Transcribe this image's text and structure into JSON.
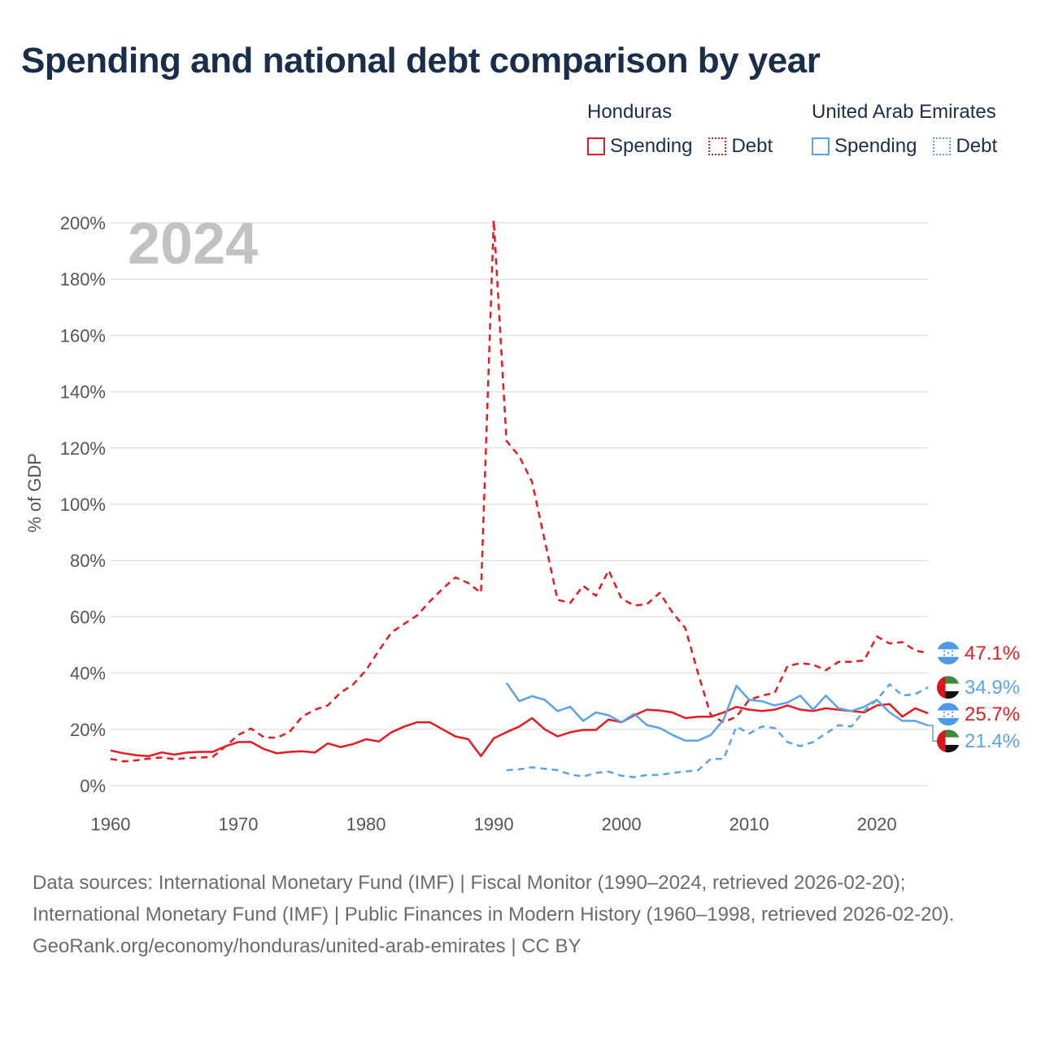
{
  "title": "Spending and national debt comparison by year",
  "legend": {
    "honduras": {
      "country": "Honduras",
      "spending": "Spending",
      "debt": "Debt",
      "color": "#e8191f"
    },
    "uae": {
      "country": "United Arab Emirates",
      "spending": "Spending",
      "debt": "Debt",
      "color": "#5aa3e8"
    }
  },
  "chart_data": {
    "type": "line",
    "year_watermark": "2024",
    "ylabel": "% of GDP",
    "xlabel": "",
    "xlim": [
      1960,
      2024
    ],
    "ylim": [
      0,
      200
    ],
    "x_ticks": [
      "1960",
      "1970",
      "1980",
      "1990",
      "2000",
      "2010",
      "2020"
    ],
    "y_ticks": [
      "0%",
      "20%",
      "40%",
      "60%",
      "80%",
      "100%",
      "120%",
      "140%",
      "160%",
      "180%",
      "200%"
    ],
    "series": [
      {
        "name": "Honduras Debt",
        "country": "Honduras",
        "metric": "Debt",
        "style": "dashed",
        "color": "#e8191f",
        "x": [
          1960,
          1961,
          1962,
          1963,
          1964,
          1965,
          1966,
          1967,
          1968,
          1969,
          1970,
          1971,
          1972,
          1973,
          1974,
          1975,
          1976,
          1977,
          1978,
          1979,
          1980,
          1981,
          1982,
          1983,
          1984,
          1985,
          1986,
          1987,
          1988,
          1989,
          1990,
          1991,
          1992,
          1993,
          1994,
          1995,
          1996,
          1997,
          1998,
          1999,
          2000,
          2001,
          2002,
          2003,
          2004,
          2005,
          2006,
          2007,
          2008,
          2009,
          2010,
          2011,
          2012,
          2013,
          2014,
          2015,
          2016,
          2017,
          2018,
          2019,
          2020,
          2021,
          2022,
          2023,
          2024
        ],
        "values": [
          9.5,
          8.6,
          9.0,
          9.6,
          10.0,
          9.4,
          9.8,
          10.0,
          10.2,
          14.0,
          18.0,
          20.3,
          17.2,
          17.0,
          19.0,
          24.5,
          27.0,
          28.5,
          33.0,
          36.0,
          41.0,
          48.0,
          54.5,
          57.5,
          60.5,
          65.5,
          70.0,
          74.0,
          72.0,
          68.5,
          201.0,
          122.5,
          117.0,
          108.0,
          87.0,
          66.0,
          65.0,
          71.0,
          67.5,
          76.5,
          66.5,
          64.0,
          64.5,
          68.5,
          61.5,
          56.0,
          40.0,
          25.0,
          22.5,
          24.5,
          30.5,
          32.0,
          33.0,
          42.5,
          43.5,
          43.0,
          41.0,
          44.0,
          44.0,
          44.5,
          53.0,
          50.5,
          51.0,
          48.0,
          47.1
        ]
      },
      {
        "name": "Honduras Spending",
        "country": "Honduras",
        "metric": "Spending",
        "style": "solid",
        "color": "#e8191f",
        "x": [
          1960,
          1961,
          1962,
          1963,
          1964,
          1965,
          1966,
          1967,
          1968,
          1969,
          1970,
          1971,
          1972,
          1973,
          1974,
          1975,
          1976,
          1977,
          1978,
          1979,
          1980,
          1981,
          1982,
          1983,
          1984,
          1985,
          1986,
          1987,
          1988,
          1989,
          1990,
          1991,
          1992,
          1993,
          1994,
          1995,
          1996,
          1997,
          1998,
          1999,
          2000,
          2001,
          2002,
          2003,
          2004,
          2005,
          2006,
          2007,
          2008,
          2009,
          2010,
          2011,
          2012,
          2013,
          2014,
          2015,
          2016,
          2017,
          2018,
          2019,
          2020,
          2021,
          2022,
          2023,
          2024
        ],
        "values": [
          12.5,
          11.5,
          10.8,
          10.5,
          11.8,
          11.0,
          11.8,
          12.0,
          12.0,
          14.0,
          15.5,
          15.5,
          13.0,
          11.5,
          12.0,
          12.2,
          11.8,
          15.0,
          13.7,
          14.8,
          16.5,
          15.7,
          19.0,
          21.0,
          22.5,
          22.5,
          20.0,
          17.5,
          16.5,
          10.5,
          16.8,
          19.0,
          21.0,
          24.0,
          20.0,
          17.5,
          19.0,
          19.8,
          19.8,
          23.5,
          22.5,
          25.0,
          27.0,
          26.7,
          26.0,
          24.0,
          24.5,
          24.5,
          26.0,
          28.0,
          27.0,
          26.5,
          27.0,
          28.5,
          27.0,
          26.5,
          27.5,
          27.0,
          26.5,
          26.0,
          28.5,
          29.0,
          24.5,
          27.5,
          25.7
        ]
      },
      {
        "name": "United Arab Emirates Spending",
        "country": "United Arab Emirates",
        "metric": "Spending",
        "style": "solid",
        "color": "#5aa3e8",
        "x": [
          1991,
          1992,
          1993,
          1994,
          1995,
          1996,
          1997,
          1998,
          1999,
          2000,
          2001,
          2002,
          2003,
          2004,
          2005,
          2006,
          2007,
          2008,
          2009,
          2010,
          2011,
          2012,
          2013,
          2014,
          2015,
          2016,
          2017,
          2018,
          2019,
          2020,
          2021,
          2022,
          2023,
          2024
        ],
        "values": [
          36.5,
          30.0,
          31.8,
          30.5,
          26.5,
          28.0,
          23.0,
          26.0,
          25.0,
          22.5,
          25.5,
          21.5,
          20.5,
          18.0,
          16.0,
          16.0,
          18.0,
          23.5,
          35.5,
          30.5,
          30.0,
          28.5,
          29.5,
          32.0,
          27.0,
          32.0,
          27.5,
          26.5,
          28.0,
          30.5,
          26.0,
          23.0,
          23.0,
          21.4
        ]
      },
      {
        "name": "United Arab Emirates Debt",
        "country": "United Arab Emirates",
        "metric": "Debt",
        "style": "dashed",
        "color": "#5aa3e8",
        "x": [
          1991,
          1992,
          1993,
          1994,
          1995,
          1996,
          1997,
          1998,
          1999,
          2000,
          2001,
          2002,
          2003,
          2004,
          2005,
          2006,
          2007,
          2008,
          2009,
          2010,
          2011,
          2012,
          2013,
          2014,
          2015,
          2016,
          2017,
          2018,
          2019,
          2020,
          2021,
          2022,
          2023,
          2024
        ],
        "values": [
          5.5,
          5.8,
          6.5,
          6.0,
          5.5,
          4.0,
          3.2,
          4.5,
          5.0,
          3.5,
          3.0,
          3.8,
          3.8,
          4.5,
          5.0,
          5.5,
          9.5,
          9.5,
          21.0,
          18.5,
          21.0,
          20.5,
          15.5,
          14.0,
          15.5,
          18.5,
          21.5,
          21.0,
          26.5,
          30.5,
          36.0,
          32.0,
          32.5,
          34.9
        ]
      }
    ],
    "end_labels": [
      {
        "series": "Honduras Debt",
        "text": "47.1%",
        "flag": "honduras",
        "color": "#e8191f"
      },
      {
        "series": "United Arab Emirates Debt",
        "text": "34.9%",
        "flag": "uae",
        "color": "#5aa3e8"
      },
      {
        "series": "Honduras Spending",
        "text": "25.7%",
        "flag": "honduras",
        "color": "#e8191f"
      },
      {
        "series": "United Arab Emirates Spending",
        "text": "21.4%",
        "flag": "uae",
        "color": "#5aa3e8"
      }
    ]
  },
  "footer": {
    "sources": "Data sources: International Monetary Fund (IMF) | Fiscal Monitor (1990–2024, retrieved 2026-02-20); International Monetary Fund (IMF) | Public Finances in Modern History (1960–1998, retrieved 2026-02-20).",
    "credit": "GeoRank.org/economy/honduras/united-arab-emirates | CC BY"
  }
}
